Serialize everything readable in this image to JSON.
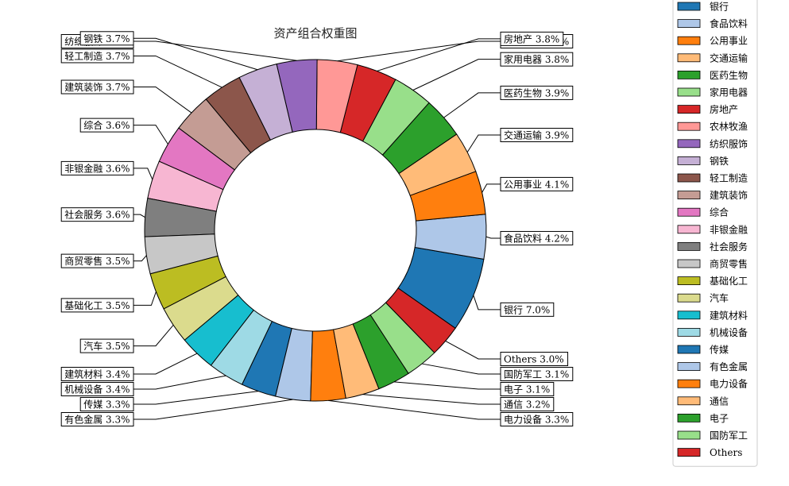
{
  "chart_data": {
    "type": "pie",
    "donut": true,
    "title": "资产组合权重图",
    "value_format": "percent_1dp",
    "legend_position": "right",
    "slices": [
      {
        "label": "银行",
        "value": 7.0,
        "color": "#1f77b4"
      },
      {
        "label": "食品饮料",
        "value": 4.2,
        "color": "#aec7e8"
      },
      {
        "label": "公用事业",
        "value": 4.1,
        "color": "#ff7f0e"
      },
      {
        "label": "交通运输",
        "value": 3.9,
        "color": "#ffbb78"
      },
      {
        "label": "医药生物",
        "value": 3.9,
        "color": "#2ca02c"
      },
      {
        "label": "家用电器",
        "value": 3.8,
        "color": "#98df8a"
      },
      {
        "label": "房地产",
        "value": 3.8,
        "color": "#d62728"
      },
      {
        "label": "农林牧渔",
        "value": 3.8,
        "color": "#ff9896"
      },
      {
        "label": "纺织服饰",
        "value": 3.8,
        "color": "#9467bd"
      },
      {
        "label": "钢铁",
        "value": 3.7,
        "color": "#c5b0d5"
      },
      {
        "label": "轻工制造",
        "value": 3.7,
        "color": "#8c564b"
      },
      {
        "label": "建筑装饰",
        "value": 3.7,
        "color": "#c49c94"
      },
      {
        "label": "综合",
        "value": 3.6,
        "color": "#e377c2"
      },
      {
        "label": "非银金融",
        "value": 3.6,
        "color": "#f7b6d2"
      },
      {
        "label": "社会服务",
        "value": 3.6,
        "color": "#7f7f7f"
      },
      {
        "label": "商贸零售",
        "value": 3.5,
        "color": "#c7c7c7"
      },
      {
        "label": "基础化工",
        "value": 3.5,
        "color": "#bcbd22"
      },
      {
        "label": "汽车",
        "value": 3.5,
        "color": "#dbdb8d"
      },
      {
        "label": "建筑材料",
        "value": 3.4,
        "color": "#17becf"
      },
      {
        "label": "机械设备",
        "value": 3.4,
        "color": "#9edae5"
      },
      {
        "label": "传媒",
        "value": 3.3,
        "color": "#1f77b4"
      },
      {
        "label": "有色金属",
        "value": 3.3,
        "color": "#aec7e8"
      },
      {
        "label": "电力设备",
        "value": 3.3,
        "color": "#ff7f0e"
      },
      {
        "label": "通信",
        "value": 3.2,
        "color": "#ffbb78"
      },
      {
        "label": "电子",
        "value": 3.1,
        "color": "#2ca02c"
      },
      {
        "label": "国防军工",
        "value": 3.1,
        "color": "#98df8a"
      },
      {
        "label": "Others",
        "value": 3.0,
        "color": "#d62728"
      }
    ]
  }
}
